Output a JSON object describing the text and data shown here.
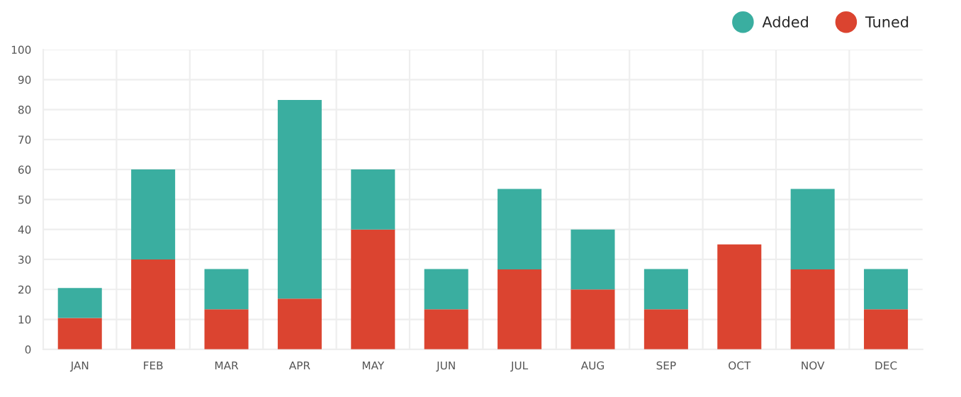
{
  "chart_data": {
    "type": "bar",
    "stacked": true,
    "categories": [
      "JAN",
      "FEB",
      "MAR",
      "APR",
      "MAY",
      "JUN",
      "JUL",
      "AUG",
      "SEP",
      "OCT",
      "NOV",
      "DEC"
    ],
    "series": [
      {
        "name": "Tuned",
        "color": "#db4430",
        "values": [
          10.5,
          30,
          13.4,
          16.9,
          40,
          13.4,
          26.7,
          20,
          13.4,
          35,
          26.7,
          13.4
        ]
      },
      {
        "name": "Added",
        "color": "#3aaea0",
        "values": [
          10,
          30,
          13.4,
          66.3,
          20,
          13.4,
          26.8,
          20,
          13.4,
          null,
          26.8,
          13.4
        ]
      }
    ],
    "ylim": [
      0,
      100
    ],
    "yticks": [
      0,
      10,
      20,
      30,
      40,
      50,
      60,
      70,
      80,
      90,
      100
    ],
    "grid": true,
    "legend": "top right"
  }
}
